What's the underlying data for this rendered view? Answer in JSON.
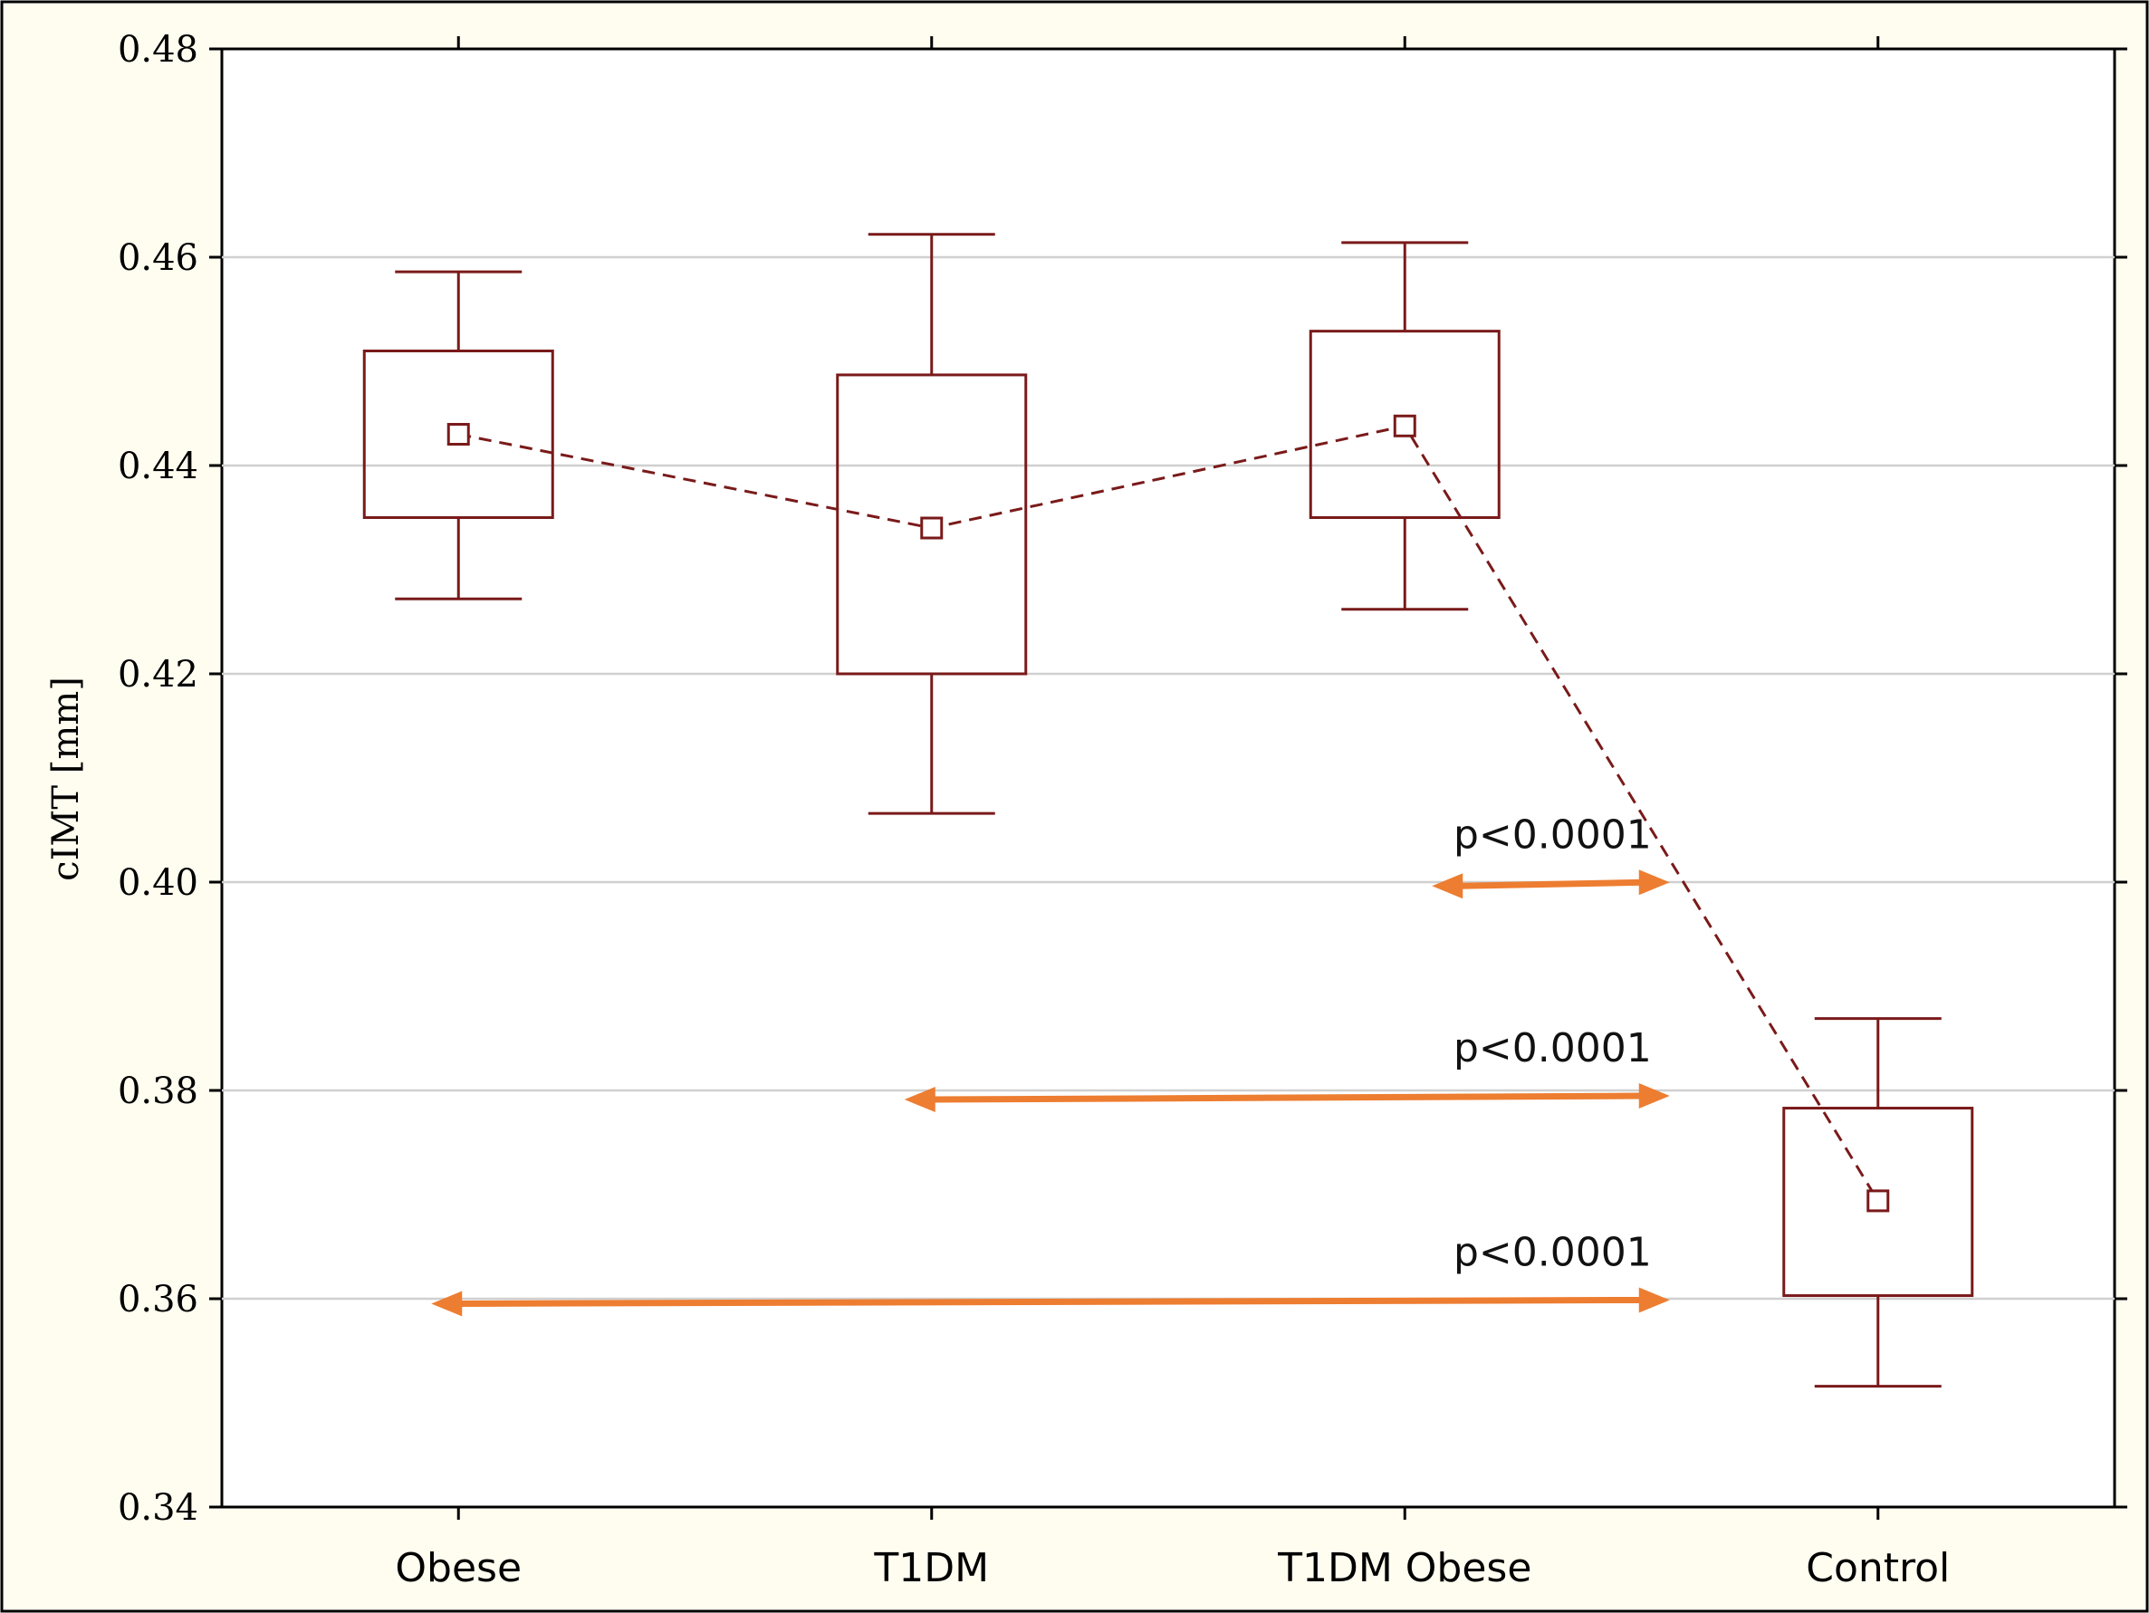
{
  "chart_data": {
    "type": "box",
    "ylabel": "cIMT [mm]",
    "ylim": [
      0.34,
      0.48
    ],
    "yticks": [
      "0.34",
      "0.36",
      "0.38",
      "0.40",
      "0.42",
      "0.44",
      "0.46",
      "0.48"
    ],
    "grid": true,
    "categories": [
      "Obese",
      "T1DM",
      "T1DM Obese",
      "Control"
    ],
    "groups": [
      {
        "category": "Obese",
        "mean": 0.443,
        "box_low": 0.435,
        "box_high": 0.451,
        "whisker_low": 0.4272,
        "whisker_high": 0.4586
      },
      {
        "category": "T1DM",
        "mean": 0.434,
        "box_low": 0.42,
        "box_high": 0.4487,
        "whisker_low": 0.4066,
        "whisker_high": 0.4622
      },
      {
        "category": "T1DM Obese",
        "mean": 0.4438,
        "box_low": 0.435,
        "box_high": 0.4529,
        "whisker_low": 0.4262,
        "whisker_high": 0.4614
      },
      {
        "category": "Control",
        "mean": 0.3694,
        "box_low": 0.3603,
        "box_high": 0.3783,
        "whisker_low": 0.3516,
        "whisker_high": 0.3869
      }
    ],
    "annotations": [
      {
        "text": "p<0.0001",
        "from": "T1DM Obese",
        "to": "Control",
        "y": 0.3998
      },
      {
        "text": "p<0.0001",
        "from": "T1DM",
        "to": "Control",
        "y": 0.3793
      },
      {
        "text": "p<0.0001",
        "from": "Obese",
        "to": "Control",
        "y": 0.3597
      }
    ],
    "colors": {
      "box": "#7a1a1a",
      "arrow": "#ed7d31",
      "frame_bg": "#fffdf0",
      "grid": "#d0d0d0"
    }
  }
}
